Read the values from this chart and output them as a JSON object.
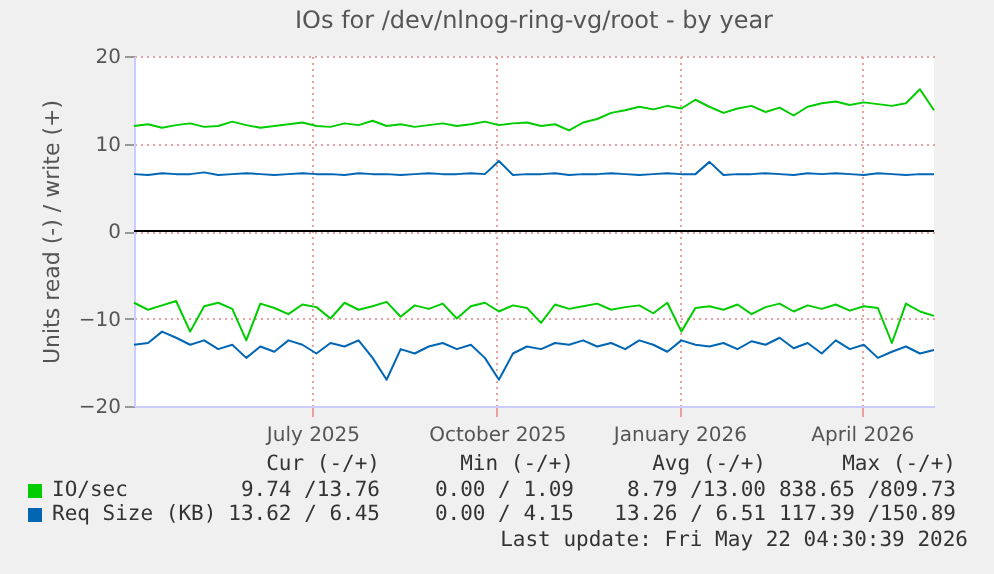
{
  "chart_data": {
    "type": "line",
    "title": "IOs for /dev/nlnog-ring-vg/root - by year",
    "ylabel": "Units read (-) / write (+)",
    "x": [
      "2025-04-18",
      "2025-04-25",
      "2025-05-02",
      "2025-05-09",
      "2025-05-16",
      "2025-05-23",
      "2025-05-30",
      "2025-06-06",
      "2025-06-13",
      "2025-06-20",
      "2025-06-27",
      "2025-07-04",
      "2025-07-11",
      "2025-07-18",
      "2025-07-25",
      "2025-08-01",
      "2025-08-08",
      "2025-08-15",
      "2025-08-22",
      "2025-08-29",
      "2025-09-05",
      "2025-09-12",
      "2025-09-19",
      "2025-09-26",
      "2025-10-03",
      "2025-10-10",
      "2025-10-17",
      "2025-10-24",
      "2025-10-31",
      "2025-11-07",
      "2025-11-14",
      "2025-11-21",
      "2025-11-28",
      "2025-12-05",
      "2025-12-12",
      "2025-12-19",
      "2025-12-26",
      "2026-01-02",
      "2026-01-09",
      "2026-01-16",
      "2026-01-23",
      "2026-01-30",
      "2026-02-06",
      "2026-02-13",
      "2026-02-20",
      "2026-02-27",
      "2026-03-06",
      "2026-03-13",
      "2026-03-20",
      "2026-03-27",
      "2026-04-03",
      "2026-04-10",
      "2026-04-17",
      "2026-04-24",
      "2026-05-01",
      "2026-05-08",
      "2026-05-15",
      "2026-05-22"
    ],
    "series": [
      {
        "name": "IO/sec",
        "color": "#00cc00",
        "values": [
          12.0,
          12.2,
          11.8,
          12.1,
          12.3,
          11.9,
          12.0,
          12.5,
          12.1,
          11.8,
          12.0,
          12.2,
          12.4,
          12.0,
          11.9,
          12.3,
          12.1,
          12.6,
          12.0,
          12.2,
          11.9,
          12.1,
          12.3,
          12.0,
          12.2,
          12.5,
          12.1,
          12.3,
          12.4,
          12.0,
          12.2,
          11.5,
          12.4,
          12.8,
          13.5,
          13.8,
          14.2,
          13.9,
          14.3,
          14.0,
          15.0,
          14.2,
          13.5,
          14.0,
          14.3,
          13.6,
          14.1,
          13.2,
          14.2,
          14.6,
          14.8,
          14.4,
          14.7,
          14.5,
          14.3,
          14.6,
          16.2,
          13.8
        ]
      },
      {
        "color": "#00cc00",
        "values": [
          -8.2,
          -9.0,
          -8.5,
          -8.0,
          -11.5,
          -8.6,
          -8.2,
          -8.9,
          -12.5,
          -8.3,
          -8.8,
          -9.5,
          -8.4,
          -8.7,
          -10.0,
          -8.2,
          -9.0,
          -8.6,
          -8.1,
          -9.8,
          -8.5,
          -8.9,
          -8.3,
          -10.0,
          -8.6,
          -8.2,
          -9.2,
          -8.5,
          -8.8,
          -10.5,
          -8.4,
          -8.9,
          -8.6,
          -8.3,
          -9.0,
          -8.7,
          -8.5,
          -9.4,
          -8.2,
          -11.5,
          -8.8,
          -8.6,
          -9.0,
          -8.4,
          -9.5,
          -8.7,
          -8.3,
          -9.2,
          -8.5,
          -8.9,
          -8.4,
          -9.1,
          -8.6,
          -8.8,
          -12.8,
          -8.3,
          -9.2,
          -9.7
        ]
      },
      {
        "name": "Req Size (KB)",
        "color": "#0066b3",
        "values": [
          6.5,
          6.4,
          6.6,
          6.5,
          6.5,
          6.7,
          6.4,
          6.5,
          6.6,
          6.5,
          6.4,
          6.5,
          6.6,
          6.5,
          6.5,
          6.4,
          6.6,
          6.5,
          6.5,
          6.4,
          6.5,
          6.6,
          6.5,
          6.5,
          6.6,
          6.5,
          8.0,
          6.4,
          6.5,
          6.5,
          6.6,
          6.4,
          6.5,
          6.5,
          6.6,
          6.5,
          6.4,
          6.5,
          6.6,
          6.5,
          6.5,
          7.9,
          6.4,
          6.5,
          6.5,
          6.6,
          6.5,
          6.4,
          6.6,
          6.5,
          6.6,
          6.5,
          6.4,
          6.6,
          6.5,
          6.4,
          6.5,
          6.5
        ]
      },
      {
        "color": "#0066b3",
        "values": [
          -13.0,
          -12.8,
          -11.5,
          -12.2,
          -13.0,
          -12.5,
          -13.5,
          -13.0,
          -14.5,
          -13.2,
          -13.8,
          -12.5,
          -13.0,
          -14.0,
          -12.8,
          -13.2,
          -12.5,
          -14.5,
          -17.0,
          -13.5,
          -14.0,
          -13.2,
          -12.8,
          -13.5,
          -13.0,
          -14.5,
          -17.0,
          -14.0,
          -13.2,
          -13.5,
          -12.8,
          -13.0,
          -12.5,
          -13.2,
          -12.8,
          -13.5,
          -12.5,
          -13.0,
          -13.8,
          -12.5,
          -13.0,
          -13.2,
          -12.8,
          -13.5,
          -12.6,
          -13.0,
          -12.2,
          -13.4,
          -12.8,
          -14.0,
          -12.5,
          -13.5,
          -13.0,
          -14.5,
          -13.8,
          -13.2,
          -14.0,
          -13.6
        ]
      }
    ],
    "xlim": [
      "2025-04-18",
      "2026-05-22"
    ],
    "xticks": [
      {
        "value": "2025-07-16",
        "label": "July 2025"
      },
      {
        "value": "2025-10-16",
        "label": "October 2025"
      },
      {
        "value": "2026-01-15",
        "label": "January 2026"
      },
      {
        "value": "2026-04-16",
        "label": "April 2026"
      }
    ],
    "ylim": [
      -20,
      20
    ],
    "yticks": [
      -20,
      -10,
      0,
      10,
      20
    ],
    "grid": true,
    "legend": "bottom",
    "ref_lines": [
      {
        "axis": "y",
        "value": 0,
        "color": "#000000"
      }
    ],
    "annotations": [
      "Cur (-/+)",
      "Min (-/+)",
      "Avg (-/+)",
      "Max (-/+)",
      "9.74 /13.76",
      "0.00 / 1.09",
      "8.79 /13.00",
      "838.65 /809.73",
      "13.62 / 6.45",
      "0.00 / 4.15",
      "13.26 / 6.51",
      "117.39 /150.89",
      "Last update: Fri May 22 04:30:39 2026"
    ]
  }
}
